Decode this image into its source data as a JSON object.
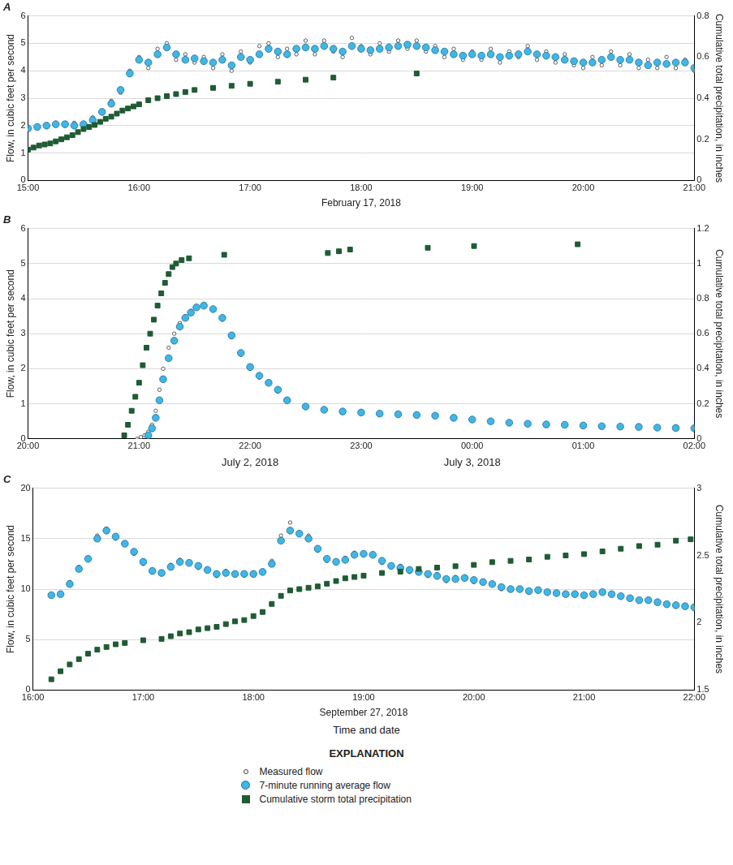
{
  "chart_data": [
    {
      "type": "scatter",
      "title": "A",
      "xlabel": "February 17, 2018",
      "ylabel": "Flow, in cubic feet per second",
      "y2label": "Cumulative total precipitation, in inches",
      "xlim": [
        900,
        1260
      ],
      "xticks": [
        {
          "value": 900,
          "label": "15:00"
        },
        {
          "value": 960,
          "label": "16:00"
        },
        {
          "value": 1020,
          "label": "17:00"
        },
        {
          "value": 1080,
          "label": "18:00"
        },
        {
          "value": 1140,
          "label": "19:00"
        },
        {
          "value": 1200,
          "label": "20:00"
        },
        {
          "value": 1260,
          "label": "21:00"
        }
      ],
      "ylim": [
        0,
        6
      ],
      "yticks": [
        0,
        1,
        2,
        3,
        4,
        5,
        6
      ],
      "y2lim": [
        0,
        0.8
      ],
      "y2ticks": [
        0,
        0.2,
        0.4,
        0.6,
        0.8
      ],
      "grid": true,
      "x": [
        900,
        905,
        910,
        915,
        920,
        925,
        930,
        935,
        940,
        945,
        950,
        955,
        960,
        965,
        970,
        975,
        980,
        985,
        990,
        995,
        1000,
        1005,
        1010,
        1015,
        1020,
        1025,
        1030,
        1035,
        1040,
        1045,
        1050,
        1055,
        1060,
        1065,
        1070,
        1075,
        1080,
        1085,
        1090,
        1095,
        1100,
        1105,
        1110,
        1115,
        1120,
        1125,
        1130,
        1135,
        1140,
        1145,
        1150,
        1155,
        1160,
        1165,
        1170,
        1175,
        1180,
        1185,
        1190,
        1195,
        1200,
        1205,
        1210,
        1215,
        1220,
        1225,
        1230,
        1235,
        1240,
        1245,
        1250,
        1255,
        1260
      ],
      "series": [
        {
          "name": "Measured flow",
          "color": "#ffffff",
          "marker": "point",
          "values": [
            1.85,
            2.0,
            1.95,
            2.1,
            2.0,
            2.1,
            1.95,
            2.3,
            2.45,
            2.9,
            3.2,
            4.0,
            4.5,
            4.1,
            4.8,
            5.0,
            4.4,
            4.6,
            4.3,
            4.5,
            4.1,
            4.6,
            4.0,
            4.7,
            4.3,
            4.9,
            5.0,
            4.5,
            4.8,
            4.6,
            5.1,
            4.6,
            5.1,
            4.7,
            4.5,
            5.2,
            4.9,
            4.6,
            5.0,
            4.7,
            5.1,
            4.8,
            5.1,
            4.7,
            4.9,
            4.5,
            4.8,
            4.4,
            4.7,
            4.4,
            4.8,
            4.3,
            4.7,
            4.5,
            4.9,
            4.4,
            4.7,
            4.3,
            4.6,
            4.2,
            4.1,
            4.5,
            4.2,
            4.7,
            4.2,
            4.6,
            4.1,
            4.4,
            4.1,
            4.5,
            4.1,
            4.4,
            4.0
          ]
        },
        {
          "name": "7-minute running average flow",
          "color": "#41b6e6",
          "marker": "circle",
          "values": [
            1.9,
            1.95,
            2.0,
            2.05,
            2.05,
            2.0,
            2.05,
            2.2,
            2.5,
            2.8,
            3.3,
            3.9,
            4.4,
            4.3,
            4.6,
            4.85,
            4.6,
            4.4,
            4.45,
            4.35,
            4.3,
            4.4,
            4.2,
            4.5,
            4.4,
            4.6,
            4.8,
            4.7,
            4.6,
            4.8,
            4.85,
            4.8,
            4.9,
            4.8,
            4.7,
            4.9,
            4.8,
            4.75,
            4.8,
            4.85,
            4.9,
            4.95,
            4.9,
            4.85,
            4.75,
            4.7,
            4.6,
            4.55,
            4.6,
            4.55,
            4.6,
            4.5,
            4.55,
            4.6,
            4.7,
            4.6,
            4.55,
            4.5,
            4.4,
            4.35,
            4.3,
            4.3,
            4.4,
            4.5,
            4.4,
            4.4,
            4.3,
            4.2,
            4.3,
            4.25,
            4.3,
            4.3,
            4.1
          ]
        },
        {
          "name": "Cumulative storm total precipitation",
          "color": "#1f5b33",
          "marker": "square",
          "axis": "y2",
          "x": [
            900,
            903,
            906,
            909,
            912,
            915,
            918,
            921,
            924,
            927,
            930,
            933,
            936,
            939,
            942,
            945,
            948,
            951,
            954,
            957,
            960,
            965,
            970,
            975,
            980,
            985,
            990,
            1000,
            1010,
            1020,
            1035,
            1050,
            1065,
            1110
          ],
          "values": [
            0.15,
            0.16,
            0.17,
            0.175,
            0.18,
            0.19,
            0.2,
            0.21,
            0.22,
            0.235,
            0.25,
            0.26,
            0.27,
            0.285,
            0.3,
            0.31,
            0.325,
            0.34,
            0.35,
            0.36,
            0.37,
            0.39,
            0.4,
            0.41,
            0.42,
            0.43,
            0.44,
            0.45,
            0.46,
            0.47,
            0.48,
            0.49,
            0.5,
            0.52
          ]
        }
      ]
    },
    {
      "type": "scatter",
      "title": "B",
      "date_labels": [
        {
          "text": "July 2, 2018",
          "x": 1320
        },
        {
          "text": "July 3, 2018",
          "x": 1440
        }
      ],
      "ylabel": "Flow, in cubic feet per second",
      "y2label": "Cumulative total precipitation, in inches",
      "xlim": [
        1200,
        1560
      ],
      "xticks": [
        {
          "value": 1200,
          "label": "20:00"
        },
        {
          "value": 1260,
          "label": "21:00"
        },
        {
          "value": 1320,
          "label": "22:00"
        },
        {
          "value": 1380,
          "label": "23:00"
        },
        {
          "value": 1440,
          "label": "00:00"
        },
        {
          "value": 1500,
          "label": "01:00"
        },
        {
          "value": 1560,
          "label": "02:00"
        }
      ],
      "ylim": [
        0,
        6
      ],
      "yticks": [
        0,
        1,
        2,
        3,
        4,
        5,
        6
      ],
      "y2lim": [
        0,
        1.2
      ],
      "y2ticks": [
        0,
        0.2,
        0.4,
        0.6,
        0.8,
        1,
        1.2
      ],
      "grid": true,
      "x": [
        1259,
        1261,
        1263,
        1265,
        1267,
        1269,
        1271,
        1273,
        1276,
        1279,
        1282,
        1285,
        1288,
        1291,
        1295,
        1300,
        1305,
        1310,
        1315,
        1320,
        1325,
        1330,
        1335,
        1340,
        1350,
        1360,
        1370,
        1380,
        1390,
        1400,
        1410,
        1420,
        1430,
        1440,
        1450,
        1460,
        1470,
        1480,
        1490,
        1500,
        1510,
        1520,
        1530,
        1540,
        1550,
        1560
      ],
      "series": [
        {
          "name": "Measured flow",
          "color": "#ffffff",
          "marker": "point",
          "values": [
            0.0,
            0.05,
            0.1,
            0.2,
            0.4,
            0.8,
            1.4,
            2.0,
            2.6,
            3.0,
            3.3,
            3.5,
            3.65,
            3.75,
            3.85,
            3.7,
            3.4,
            2.9,
            2.4,
            2.0,
            1.75,
            1.6,
            1.35,
            1.1,
            0.9,
            0.82,
            0.78,
            0.75,
            0.72,
            0.7,
            0.68,
            0.66,
            0.6,
            0.55,
            0.5,
            0.46,
            0.43,
            0.41,
            0.4,
            0.38,
            0.36,
            0.35,
            0.34,
            0.32,
            0.31,
            0.3
          ]
        },
        {
          "name": "7-minute running average flow",
          "color": "#41b6e6",
          "marker": "circle",
          "values": [
            null,
            null,
            null,
            0.1,
            0.3,
            0.6,
            1.1,
            1.7,
            2.3,
            2.8,
            3.2,
            3.45,
            3.6,
            3.75,
            3.8,
            3.7,
            3.45,
            2.95,
            2.45,
            2.05,
            1.8,
            1.6,
            1.4,
            1.1,
            0.92,
            0.83,
            0.78,
            0.75,
            0.72,
            0.7,
            0.68,
            0.66,
            0.6,
            0.55,
            0.5,
            0.46,
            0.43,
            0.41,
            0.4,
            0.38,
            0.36,
            0.35,
            0.34,
            0.32,
            0.31,
            0.3
          ]
        },
        {
          "name": "Cumulative storm total precipitation",
          "color": "#1f5b33",
          "marker": "square",
          "axis": "y2",
          "x": [
            1252,
            1254,
            1256,
            1258,
            1260,
            1262,
            1264,
            1266,
            1268,
            1270,
            1272,
            1274,
            1276,
            1278,
            1280,
            1283,
            1287,
            1306,
            1362,
            1368,
            1374,
            1416,
            1441,
            1497
          ],
          "values": [
            0.02,
            0.08,
            0.16,
            0.24,
            0.32,
            0.42,
            0.52,
            0.6,
            0.68,
            0.76,
            0.83,
            0.89,
            0.94,
            0.98,
            1.0,
            1.02,
            1.03,
            1.05,
            1.06,
            1.07,
            1.08,
            1.09,
            1.1,
            1.11
          ]
        }
      ]
    },
    {
      "type": "scatter",
      "title": "C",
      "xlabel": "September 27, 2018",
      "ylabel": "Flow, in cubic feet per second",
      "y2label": "Cumulative total precipitation, in inches",
      "xlim": [
        960,
        1320
      ],
      "xticks": [
        {
          "value": 960,
          "label": "16:00"
        },
        {
          "value": 1020,
          "label": "17:00"
        },
        {
          "value": 1080,
          "label": "18:00"
        },
        {
          "value": 1140,
          "label": "19:00"
        },
        {
          "value": 1200,
          "label": "20:00"
        },
        {
          "value": 1260,
          "label": "21:00"
        },
        {
          "value": 1320,
          "label": "22:00"
        }
      ],
      "ylim": [
        0,
        20
      ],
      "yticks": [
        0,
        5,
        10,
        15,
        20
      ],
      "y2lim": [
        1.5,
        3
      ],
      "y2ticks": [
        1.5,
        2,
        2.5,
        3
      ],
      "grid": true,
      "x": [
        970,
        975,
        980,
        985,
        990,
        995,
        1000,
        1005,
        1010,
        1015,
        1020,
        1025,
        1030,
        1035,
        1040,
        1045,
        1050,
        1055,
        1060,
        1065,
        1070,
        1075,
        1080,
        1085,
        1090,
        1095,
        1100,
        1105,
        1110,
        1115,
        1120,
        1125,
        1130,
        1135,
        1140,
        1145,
        1150,
        1155,
        1160,
        1165,
        1170,
        1175,
        1180,
        1185,
        1190,
        1195,
        1200,
        1205,
        1210,
        1215,
        1220,
        1225,
        1230,
        1235,
        1240,
        1245,
        1250,
        1255,
        1260,
        1265,
        1270,
        1275,
        1280,
        1285,
        1290,
        1295,
        1300,
        1305,
        1310,
        1315,
        1320
      ],
      "series": [
        {
          "name": "Measured flow",
          "color": "#ffffff",
          "marker": "point",
          "values": [
            9.3,
            9.6,
            10.7,
            12.2,
            13.1,
            15.3,
            16.0,
            15.0,
            14.6,
            13.5,
            12.5,
            11.7,
            11.7,
            12.4,
            12.9,
            12.5,
            12.1,
            11.8,
            11.3,
            11.8,
            11.6,
            11.4,
            11.6,
            11.8,
            12.8,
            15.3,
            16.6,
            15.4,
            15.3,
            13.8,
            12.8,
            12.6,
            13.1,
            13.6,
            13.4,
            13.5,
            12.6,
            12.2,
            12.3,
            11.7,
            11.8,
            11.3,
            11.5,
            10.8,
            11.2,
            11.0,
            10.7,
            10.8,
            10.4,
            10.0,
            10.1,
            9.9,
            9.7,
            10.0,
            9.6,
            9.7,
            9.4,
            9.6,
            9.3,
            9.6,
            9.8,
            9.4,
            9.2,
            9.2,
            8.8,
            9.0,
            8.6,
            8.6,
            8.3,
            8.4,
            8.1
          ]
        },
        {
          "name": "7-minute running average flow",
          "color": "#41b6e6",
          "marker": "circle",
          "values": [
            9.4,
            9.5,
            10.5,
            12.0,
            13.0,
            15.0,
            15.8,
            15.2,
            14.5,
            13.7,
            12.7,
            11.8,
            11.6,
            12.2,
            12.7,
            12.6,
            12.3,
            11.9,
            11.5,
            11.6,
            11.5,
            11.5,
            11.5,
            11.7,
            12.5,
            14.8,
            15.8,
            15.5,
            15.0,
            14.0,
            13.0,
            12.7,
            12.9,
            13.4,
            13.5,
            13.4,
            12.8,
            12.3,
            12.1,
            11.9,
            11.7,
            11.5,
            11.3,
            11.0,
            11.0,
            11.1,
            10.9,
            10.7,
            10.5,
            10.2,
            10.0,
            10.0,
            9.8,
            9.9,
            9.7,
            9.6,
            9.5,
            9.5,
            9.4,
            9.5,
            9.7,
            9.5,
            9.3,
            9.1,
            8.9,
            8.9,
            8.7,
            8.5,
            8.4,
            8.3,
            8.2
          ]
        },
        {
          "name": "Cumulative storm total precipitation",
          "color": "#1f5b33",
          "marker": "square",
          "axis": "y2",
          "x": [
            970,
            975,
            980,
            985,
            990,
            995,
            1000,
            1005,
            1010,
            1020,
            1030,
            1035,
            1040,
            1045,
            1050,
            1055,
            1060,
            1065,
            1070,
            1075,
            1080,
            1085,
            1090,
            1095,
            1100,
            1105,
            1110,
            1115,
            1120,
            1125,
            1130,
            1135,
            1140,
            1150,
            1160,
            1170,
            1180,
            1190,
            1200,
            1210,
            1220,
            1230,
            1240,
            1250,
            1260,
            1270,
            1280,
            1290,
            1300,
            1310,
            1318
          ],
          "values": [
            1.58,
            1.64,
            1.69,
            1.73,
            1.77,
            1.8,
            1.82,
            1.84,
            1.85,
            1.87,
            1.88,
            1.9,
            1.92,
            1.93,
            1.95,
            1.96,
            1.97,
            1.99,
            2.01,
            2.02,
            2.05,
            2.08,
            2.14,
            2.2,
            2.24,
            2.25,
            2.26,
            2.27,
            2.29,
            2.31,
            2.33,
            2.34,
            2.35,
            2.37,
            2.38,
            2.4,
            2.41,
            2.42,
            2.43,
            2.45,
            2.46,
            2.47,
            2.49,
            2.5,
            2.51,
            2.53,
            2.55,
            2.57,
            2.58,
            2.61,
            2.62
          ]
        }
      ]
    }
  ],
  "xlabel": "Time and date",
  "explanation": {
    "title": "EXPLANATION"
  }
}
